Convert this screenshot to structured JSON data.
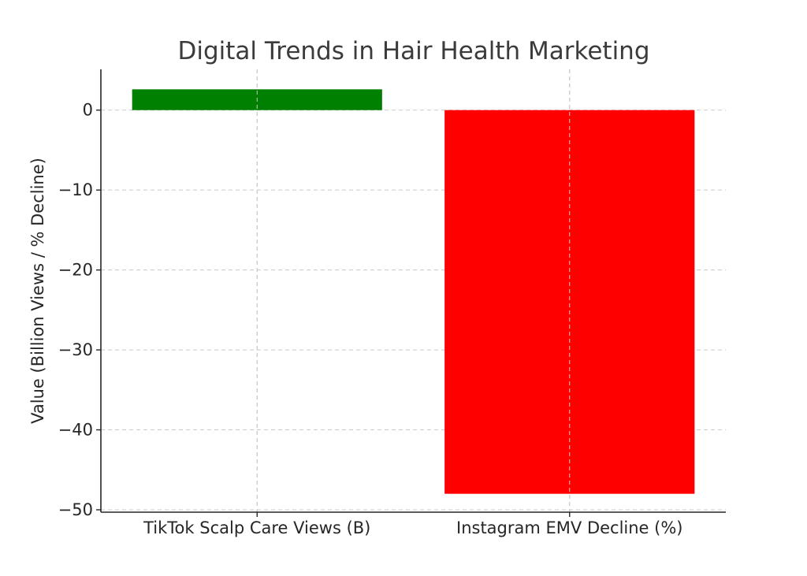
{
  "chart_data": {
    "type": "bar",
    "title": "Digital Trends in Hair Health Marketing",
    "xlabel": "",
    "ylabel": "Value (Billion Views / % Decline)",
    "categories": [
      "TikTok Scalp Care Views (B)",
      "Instagram EMV Decline (%)"
    ],
    "values": [
      2.6,
      -48
    ],
    "bar_colors": [
      "#008000",
      "#ff0000"
    ],
    "ylim": [
      -50.3,
      5.1
    ],
    "yticks": [
      0,
      -10,
      -20,
      -30,
      -40,
      -50
    ],
    "ytick_labels": [
      "0",
      "−10",
      "−20",
      "−30",
      "−40",
      "−50"
    ],
    "grid": true
  }
}
